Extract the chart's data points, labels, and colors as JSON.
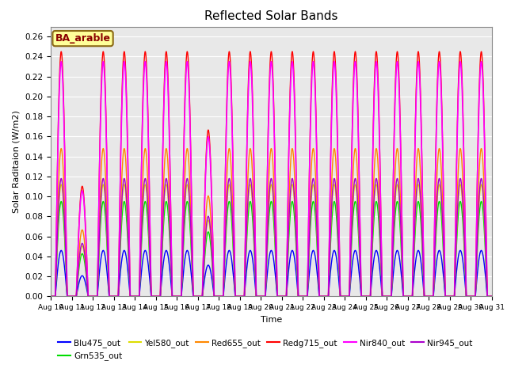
{
  "title": "Reflected Solar Bands",
  "xlabel": "Time",
  "ylabel": "Solar Raditaion (W/m2)",
  "annotation": "BA_arable",
  "annotation_bg": "#FFFF99",
  "annotation_border": "#8B6914",
  "annotation_text_color": "#8B0000",
  "ylim": [
    0.0,
    0.27
  ],
  "yticks": [
    0.0,
    0.02,
    0.04,
    0.06,
    0.08,
    0.1,
    0.12,
    0.14,
    0.16,
    0.18,
    0.2,
    0.22,
    0.24,
    0.26
  ],
  "n_days": 21,
  "series": [
    {
      "name": "Blu475_out",
      "color": "#0000FF",
      "peak": 0.046,
      "lw": 1.0
    },
    {
      "name": "Grn535_out",
      "color": "#00DD00",
      "peak": 0.095,
      "lw": 1.0
    },
    {
      "name": "Yel580_out",
      "color": "#DDDD00",
      "peak": 0.112,
      "lw": 1.0
    },
    {
      "name": "Red655_out",
      "color": "#FF8800",
      "peak": 0.148,
      "lw": 1.0
    },
    {
      "name": "Redg715_out",
      "color": "#FF0000",
      "peak": 0.245,
      "lw": 1.0
    },
    {
      "name": "Nir840_out",
      "color": "#FF00FF",
      "peak": 0.235,
      "lw": 1.2
    },
    {
      "name": "Nir945_out",
      "color": "#AA00CC",
      "peak": 0.118,
      "lw": 1.0
    }
  ],
  "xtick_labels": [
    "Aug 10",
    "Aug 11",
    "Aug 12",
    "Aug 13",
    "Aug 14",
    "Aug 15",
    "Aug 16",
    "Aug 17",
    "Aug 18",
    "Aug 19",
    "Aug 20",
    "Aug 21",
    "Aug 22",
    "Aug 23",
    "Aug 24",
    "Aug 25",
    "Aug 26",
    "Aug 27",
    "Aug 28",
    "Aug 29",
    "Aug 30",
    "Aug 31"
  ],
  "background_color": "#E8E8E8",
  "grid_color": "#FFFFFF",
  "fig_bg": "#FFFFFF",
  "cloud_days": [
    1,
    7
  ],
  "cloud_factors": [
    0.45,
    0.68
  ]
}
